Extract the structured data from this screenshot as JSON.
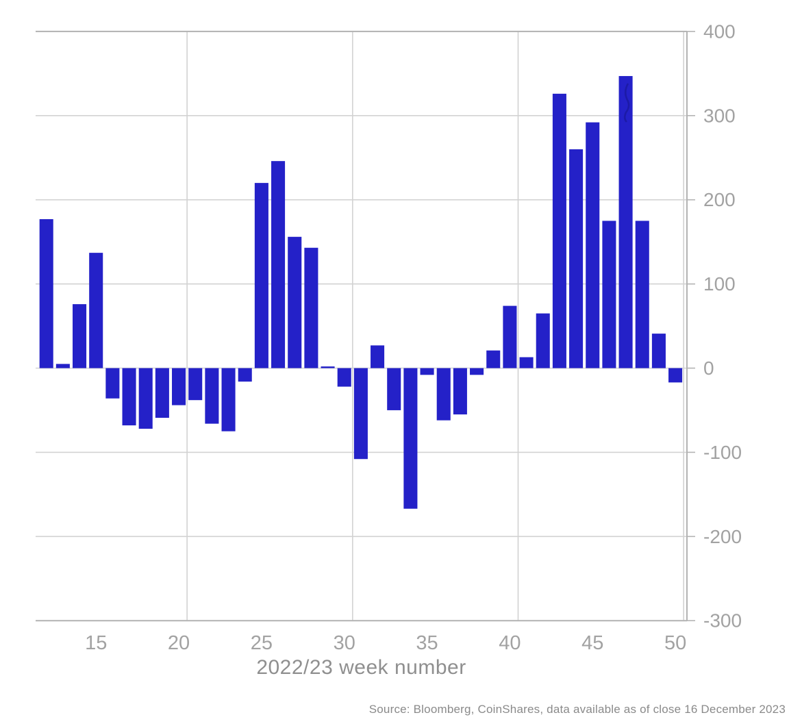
{
  "chart_data": {
    "type": "bar",
    "title": "",
    "xlabel": "2022/23 week number",
    "source": "Source: Bloomberg, CoinShares, data available as of close 16 December 2023",
    "x": [
      12,
      13,
      14,
      15,
      16,
      17,
      18,
      19,
      20,
      21,
      22,
      23,
      24,
      25,
      26,
      27,
      28,
      29,
      30,
      31,
      32,
      33,
      34,
      35,
      36,
      37,
      38,
      39,
      40,
      41,
      42,
      43,
      44,
      45,
      46,
      47,
      48,
      49,
      50
    ],
    "values": [
      177,
      5,
      76,
      137,
      -36,
      -68,
      -72,
      -59,
      -44,
      -38,
      -66,
      -75,
      -16,
      220,
      246,
      156,
      143,
      2,
      -22,
      -108,
      27,
      -50,
      -167,
      -8,
      -62,
      -55,
      -8,
      21,
      74,
      13,
      65,
      326,
      260,
      292,
      175,
      347,
      175,
      41,
      -17
    ],
    "x_ticks": [
      15,
      20,
      25,
      30,
      35,
      40,
      45,
      50
    ],
    "y_ticks": [
      400,
      300,
      200,
      100,
      0,
      -100,
      -200,
      -300
    ],
    "xlim": [
      11.35,
      50.7
    ],
    "ylim": [
      -300,
      400
    ],
    "x_gridlines": [
      20.5,
      30.5,
      40.5,
      50.5
    ],
    "grid_on": true,
    "legend": "none",
    "bar_color": "#2421c8",
    "grid_color": "#d2d2d2",
    "spine_color": "#b3b3b3",
    "tick_label_color": "#a2a2a2",
    "axis_title_color": "#8f8f8f",
    "source_color": "#8a8a8a"
  }
}
